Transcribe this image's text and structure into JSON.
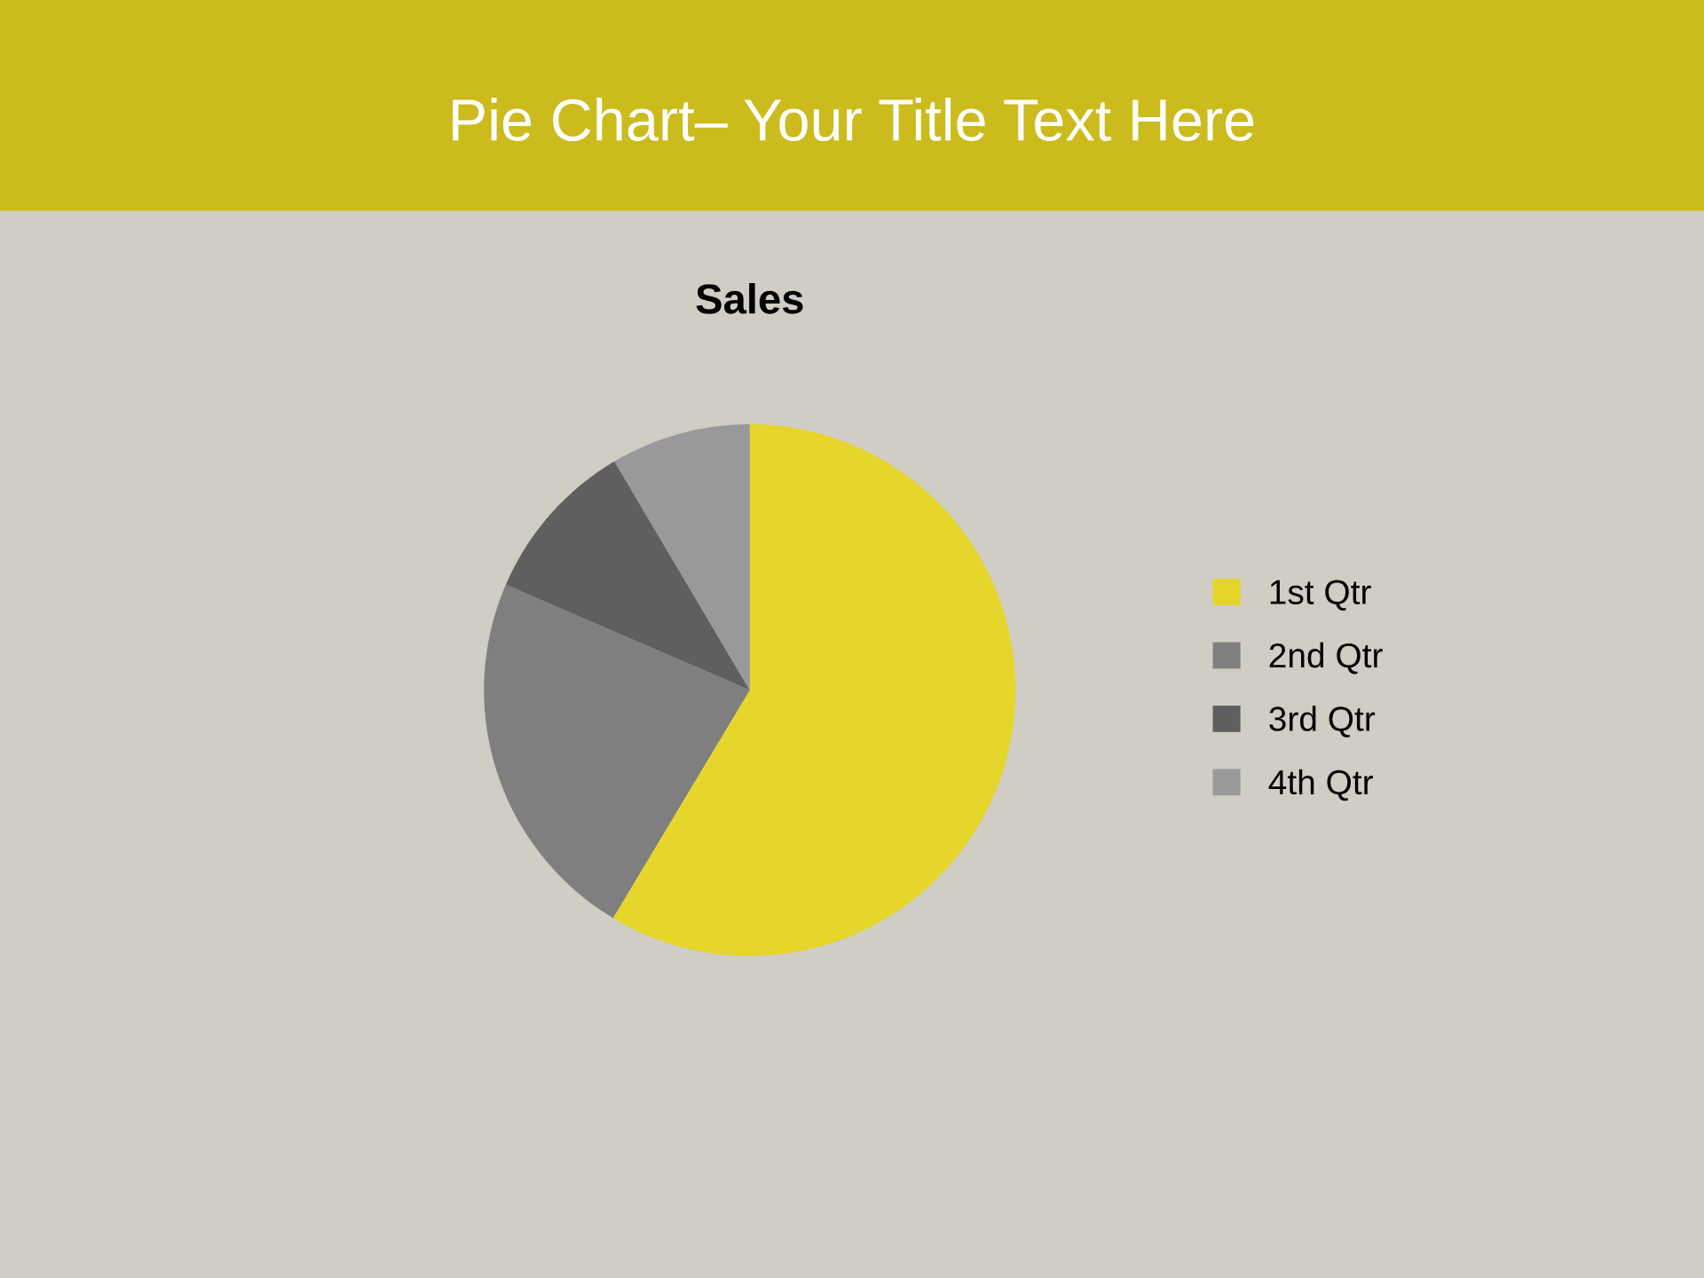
{
  "chart_data": {
    "type": "pie",
    "title": "Pie Chart– Your Title Text Here",
    "subtitle": "Sales",
    "categories": [
      "1st Qtr",
      "2nd Qtr",
      "3rd Qtr",
      "4th Qtr"
    ],
    "values": [
      58.6,
      22.9,
      10.0,
      8.5
    ],
    "colors": [
      "#e6d52a",
      "#7f7f7f",
      "#5f5f5f",
      "#999999"
    ],
    "legend": "right"
  }
}
